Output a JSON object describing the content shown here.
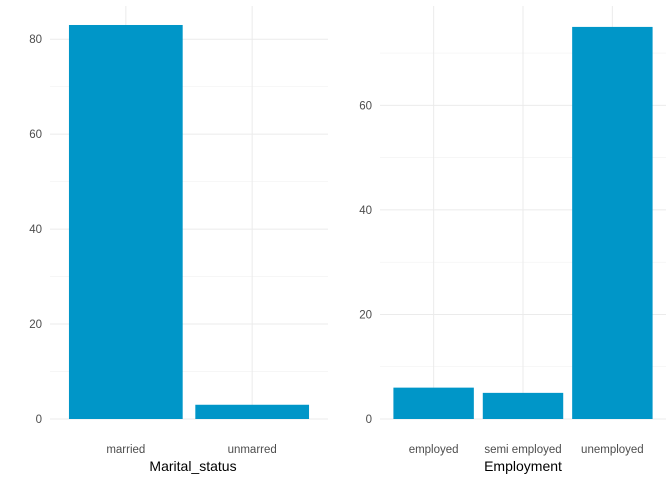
{
  "chart_data": [
    {
      "type": "bar",
      "categories": [
        "married",
        "unmarred"
      ],
      "values": [
        83,
        3
      ],
      "xlabel": "Marital_status",
      "ylabel": "",
      "ylim": [
        0,
        87
      ],
      "yticks": [
        0,
        20,
        40,
        60,
        80
      ],
      "grid": true,
      "bar_color": "#0096c8"
    },
    {
      "type": "bar",
      "categories": [
        "employed",
        "semi employed",
        "unemployed"
      ],
      "values": [
        6,
        5,
        75
      ],
      "xlabel": "Employment",
      "ylabel": "",
      "ylim": [
        0,
        79
      ],
      "yticks": [
        0,
        20,
        40,
        60
      ],
      "grid": true,
      "bar_color": "#0096c8"
    }
  ]
}
